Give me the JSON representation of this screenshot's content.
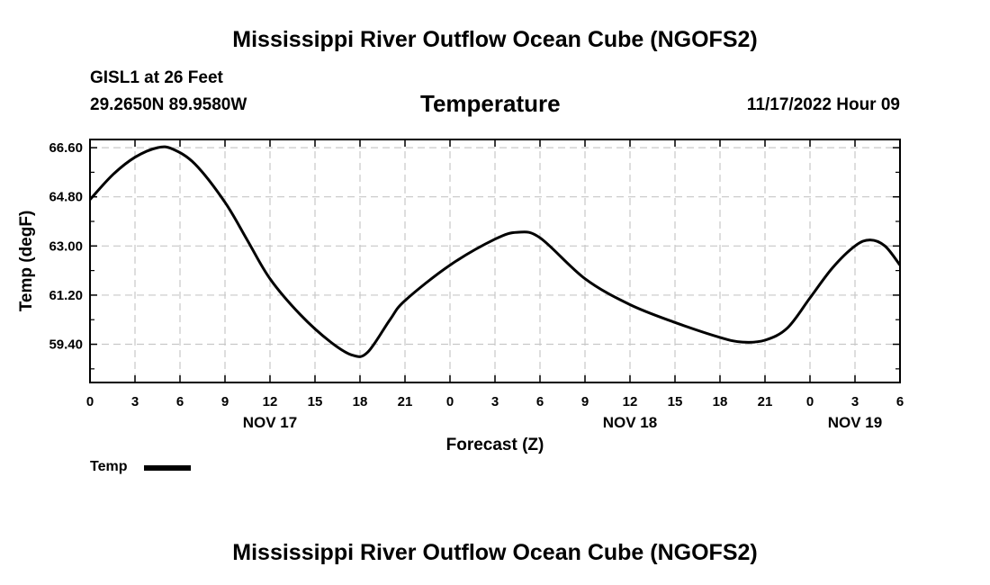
{
  "header": {
    "title": "Mississippi River Outflow Ocean Cube (NGOFS2)",
    "station": "GISL1 at 26 Feet",
    "coords": "29.2650N  89.9580W",
    "variable": "Temperature",
    "timestamp": "11/17/2022 Hour 09"
  },
  "legend": {
    "label": "Temp"
  },
  "footer": {
    "title": "Mississippi River Outflow Ocean Cube (NGOFS2)"
  },
  "colors": {
    "line": "#000000",
    "grid": "#c8c8c8",
    "background": "#ffffff"
  },
  "chart_data": {
    "type": "line",
    "title": "Temperature",
    "xlabel": "Forecast (Z)",
    "ylabel": "Temp (degF)",
    "xlim": [
      0,
      54
    ],
    "ylim": [
      58.0,
      66.9
    ],
    "yticks": [
      59.4,
      61.2,
      63.0,
      64.8,
      66.6
    ],
    "ytick_labels": [
      "59.40",
      "61.20",
      "63.00",
      "64.80",
      "66.60"
    ],
    "xticks": [
      0,
      3,
      6,
      9,
      12,
      15,
      18,
      21,
      24,
      27,
      30,
      33,
      36,
      39,
      42,
      45,
      48,
      51,
      54
    ],
    "xtick_labels": [
      "0",
      "3",
      "6",
      "9",
      "12",
      "15",
      "18",
      "21",
      "0",
      "3",
      "6",
      "9",
      "12",
      "15",
      "18",
      "21",
      "0",
      "3",
      "6"
    ],
    "day_labels": [
      {
        "x": 12,
        "label": "NOV 17"
      },
      {
        "x": 36,
        "label": "NOV 18"
      },
      {
        "x": 51,
        "label": "NOV 19"
      }
    ],
    "grid": true,
    "legend_position": "bottom-left",
    "series": [
      {
        "name": "Temp",
        "x": [
          0,
          1.5,
          3,
          4.5,
          5.5,
          7,
          9,
          10.5,
          12,
          14,
          16,
          17.5,
          18.5,
          20,
          21,
          24,
          27,
          28.5,
          30,
          33,
          36,
          39,
          42,
          43.5,
          45,
          46.5,
          48,
          49.5,
          51,
          52,
          53,
          54
        ],
        "y": [
          64.7,
          65.6,
          66.25,
          66.6,
          66.55,
          66.0,
          64.6,
          63.2,
          61.8,
          60.5,
          59.5,
          59.0,
          59.1,
          60.3,
          61.0,
          62.3,
          63.25,
          63.5,
          63.3,
          61.8,
          60.85,
          60.2,
          59.65,
          59.48,
          59.55,
          60.0,
          61.1,
          62.2,
          63.0,
          63.22,
          63.0,
          62.3
        ]
      }
    ]
  }
}
